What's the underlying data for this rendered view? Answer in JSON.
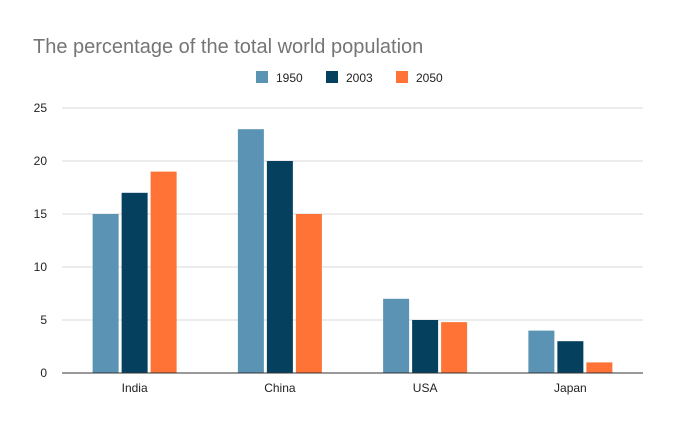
{
  "chart_data": {
    "type": "bar",
    "title": "The percentage of the total world population",
    "xlabel": "",
    "ylabel": "",
    "categories": [
      "India",
      "China",
      "USA",
      "Japan"
    ],
    "series": [
      {
        "name": "1950",
        "values": [
          15,
          23,
          7,
          4
        ],
        "color": "#5B93B5"
      },
      {
        "name": "2003",
        "values": [
          17,
          20,
          5,
          3
        ],
        "color": "#05415F"
      },
      {
        "name": "2050",
        "values": [
          19,
          15,
          4.8,
          1
        ],
        "color": "#FF7336"
      }
    ],
    "ylim": [
      0,
      25
    ],
    "yticks": [
      0,
      5,
      10,
      15,
      20,
      25
    ],
    "grid": true,
    "legend_position": "top"
  }
}
